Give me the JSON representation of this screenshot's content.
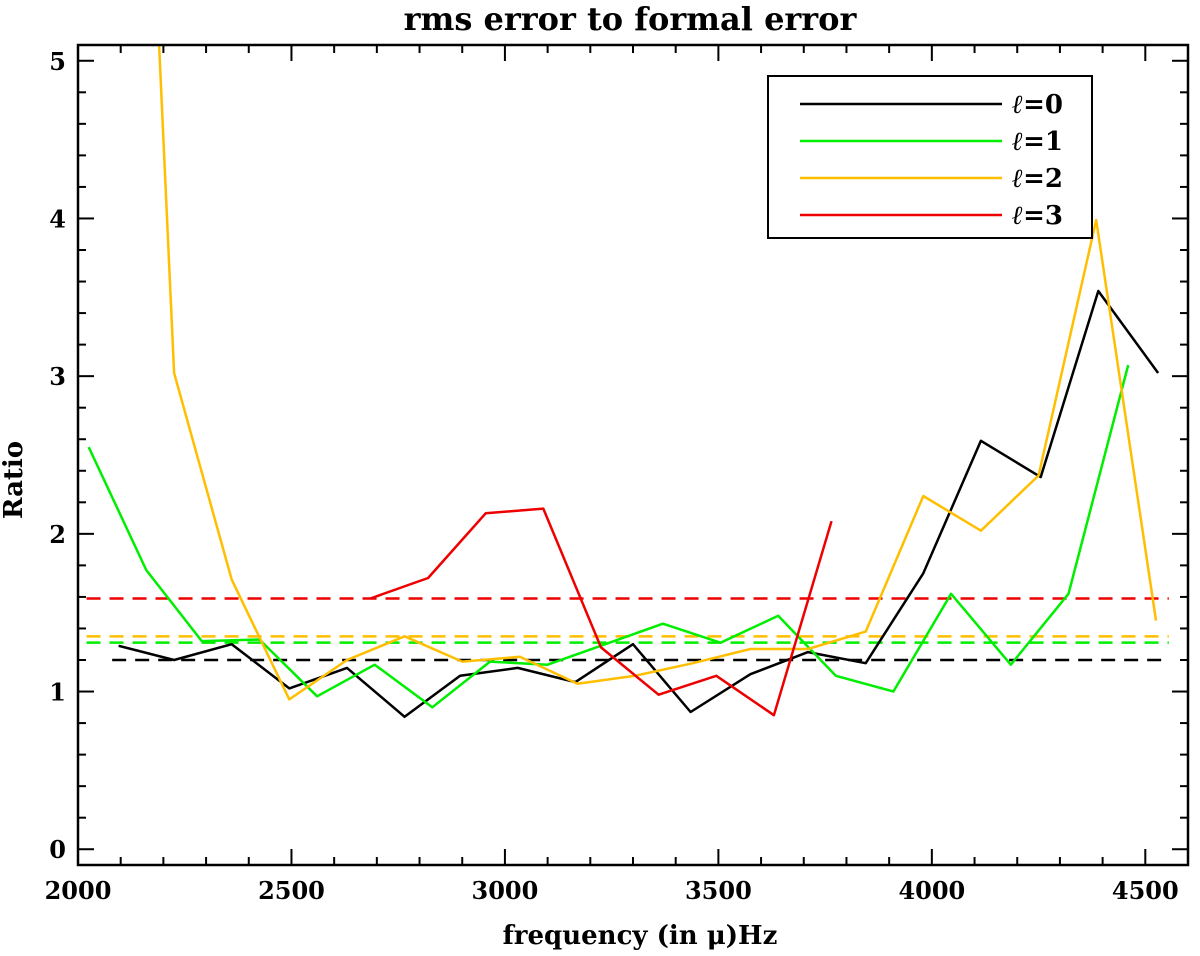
{
  "chart_data": {
    "type": "line",
    "title": "rms error to formal error",
    "xlabel": "frequency (in μ)Hz",
    "ylabel": "Ratio",
    "xlim": [
      2000,
      4600
    ],
    "ylim": [
      -0.1,
      5.1
    ],
    "x_ticks": [
      "2000",
      "2500",
      "3000",
      "3500",
      "4000",
      "4500"
    ],
    "y_ticks": [
      "0",
      "1",
      "2",
      "3",
      "4",
      "5"
    ],
    "x_tick_values": [
      2000,
      2500,
      3000,
      3500,
      4000,
      4500
    ],
    "y_tick_values": [
      0,
      1,
      2,
      3,
      4,
      5
    ],
    "grid": false,
    "legend_position": "top-right",
    "series": [
      {
        "name": "l=0",
        "legend_symbol": "ℓ",
        "legend_value": "=0",
        "color": "#000000",
        "x": [
          2095,
          2225,
          2360,
          2495,
          2630,
          2765,
          2895,
          3030,
          3165,
          3300,
          3435,
          3575,
          3710,
          3845,
          3980,
          4115,
          4255,
          4390,
          4530
        ],
        "y": [
          1.29,
          1.2,
          1.3,
          1.02,
          1.15,
          0.84,
          1.1,
          1.15,
          1.06,
          1.3,
          0.87,
          1.11,
          1.25,
          1.18,
          1.75,
          2.59,
          2.36,
          3.54,
          3.02
        ]
      },
      {
        "name": "l=1",
        "legend_symbol": "ℓ",
        "legend_value": "=1",
        "color": "#00ee00",
        "x": [
          2025,
          2160,
          2290,
          2425,
          2560,
          2695,
          2830,
          2965,
          3100,
          3235,
          3370,
          3505,
          3640,
          3775,
          3910,
          4045,
          4185,
          4320,
          4460
        ],
        "y": [
          2.55,
          1.77,
          1.32,
          1.33,
          0.97,
          1.17,
          0.9,
          1.19,
          1.17,
          1.3,
          1.43,
          1.31,
          1.48,
          1.1,
          1.0,
          1.62,
          1.17,
          1.62,
          3.07
        ]
      },
      {
        "name": "l=2",
        "legend_symbol": "ℓ",
        "legend_value": "=2",
        "color": "#ffbf00",
        "x": [
          2190,
          2225,
          2360,
          2495,
          2630,
          2765,
          2900,
          3035,
          3170,
          3305,
          3440,
          3575,
          3710,
          3845,
          3980,
          4115,
          4250,
          4385,
          4525
        ],
        "y": [
          5.1,
          3.02,
          1.71,
          0.95,
          1.2,
          1.35,
          1.19,
          1.22,
          1.05,
          1.1,
          1.18,
          1.27,
          1.27,
          1.38,
          2.24,
          2.02,
          2.37,
          3.99,
          1.45
        ]
      },
      {
        "name": "l=3",
        "legend_symbol": "ℓ",
        "legend_value": "=3",
        "color": "#ee0000",
        "x": [
          2685,
          2820,
          2955,
          3090,
          3225,
          3360,
          3495,
          3630,
          3765
        ],
        "y": [
          1.59,
          1.72,
          2.13,
          2.16,
          1.28,
          0.98,
          1.1,
          0.85,
          2.08
        ]
      }
    ],
    "reference_lines": [
      {
        "series": "l=0",
        "y": 1.2,
        "x_range": [
          2080,
          4555
        ],
        "style": "dashed",
        "color": "#000000"
      },
      {
        "series": "l=1",
        "y": 1.31,
        "x_range": [
          2020,
          4555
        ],
        "style": "dashed",
        "color": "#00ee00"
      },
      {
        "series": "l=2",
        "y": 1.35,
        "x_range": [
          2020,
          4555
        ],
        "style": "dashed",
        "color": "#ffbf00"
      },
      {
        "series": "l=3",
        "y": 1.59,
        "x_range": [
          2020,
          4555
        ],
        "style": "dashed",
        "color": "#ee0000"
      }
    ]
  }
}
